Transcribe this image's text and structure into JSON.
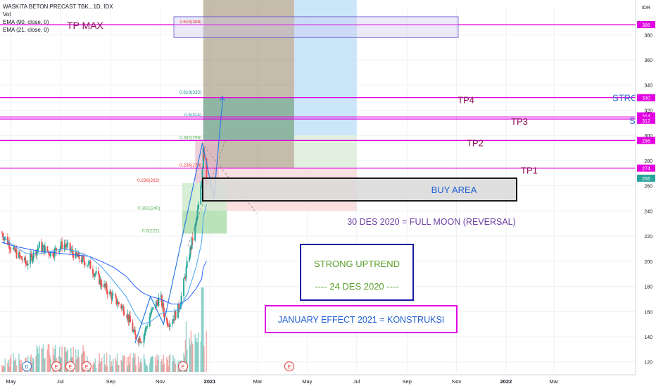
{
  "header": {
    "symbol_line": "WASKITA BETON PRECAST TBK., 1D, IDX",
    "indicators": [
      "Vol",
      "EMA (90, close, 0)",
      "EMA (21, close, 0)"
    ],
    "currency": "IDR"
  },
  "chart_data": {
    "type": "candlestick",
    "title": "",
    "x_tick_labels": [
      "May",
      "Jul",
      "Sep",
      "Nov",
      "2021",
      "Mar",
      "May",
      "Jul",
      "Sep",
      "Nov",
      "2022",
      "Mar"
    ],
    "y_tick_labels": [
      120,
      140,
      160,
      180,
      200,
      220,
      240,
      260,
      280,
      300,
      320,
      340,
      360,
      380
    ],
    "ylim": [
      112,
      402
    ],
    "price_series": {
      "name": "",
      "dates": [
        "2020-04-20",
        "2020-05-05",
        "2020-05-20",
        "2020-06-05",
        "2020-06-20",
        "2020-07-05",
        "2020-07-20",
        "2020-08-05",
        "2020-08-20",
        "2020-09-05",
        "2020-09-20",
        "2020-10-01",
        "2020-10-10",
        "2020-10-20",
        "2020-11-01",
        "2020-11-08",
        "2020-11-15",
        "2020-11-25",
        "2020-12-05",
        "2020-12-15",
        "2020-12-22",
        "2020-12-24",
        "2020-12-28"
      ],
      "close": [
        222,
        208,
        198,
        212,
        206,
        214,
        204,
        198,
        183,
        170,
        160,
        140,
        138,
        158,
        172,
        152,
        152,
        165,
        200,
        230,
        262,
        292,
        262
      ]
    },
    "ema_90": {
      "values": [
        215,
        212,
        210,
        208,
        207,
        206,
        205,
        204,
        200,
        195,
        188,
        180,
        175,
        172,
        170,
        168,
        166,
        166,
        170,
        178,
        186,
        195,
        200
      ]
    },
    "ema_21": {
      "values": [
        220,
        212,
        206,
        206,
        208,
        210,
        208,
        204,
        196,
        184,
        172,
        158,
        150,
        152,
        158,
        160,
        160,
        162,
        175,
        195,
        215,
        235,
        245
      ]
    },
    "volume_note": "daily volume bars",
    "horizontal_levels": [
      {
        "label": "TP MAX",
        "price": 388,
        "color": "#e200e2"
      },
      {
        "label": "TP4",
        "price": 330,
        "color": "#e200e2"
      },
      {
        "label": "TP3",
        "price": 313,
        "color": "#e200e2"
      },
      {
        "label": "TP2",
        "price": 296,
        "color": "#e200e2"
      },
      {
        "label": "TP1",
        "price": 274,
        "color": "#e200e2"
      }
    ],
    "price_badges": [
      "388",
      "330",
      "314",
      "312",
      "296",
      "274",
      "266"
    ],
    "fib_labels": [
      {
        "text": "2.618(388)",
        "price": 388
      },
      {
        "text": "0.618(332)",
        "price": 332
      },
      {
        "text": "0.5(314)",
        "price": 314
      },
      {
        "text": "0.382(296)",
        "price": 296
      },
      {
        "text": "0.236(274)",
        "price": 274
      },
      {
        "text": "0.236(262)",
        "price": 262
      },
      {
        "text": "0.382(240)",
        "price": 240
      },
      {
        "text": "0.5(222)",
        "price": 222
      }
    ],
    "annotations": {
      "buy_area": "BUY AREA",
      "full_moon": "30 DES 2020 = FULL MOON (REVERSAL)",
      "uptrend_title": "STRONG UPTREND",
      "uptrend_date": "---- 24 DES 2020 ----",
      "january_effect": "JANUARY EFFECT 2021 = KONSTRUKSI",
      "right_edge_1": "STRO",
      "right_edge_2": "ST"
    },
    "event_markers": [
      "D",
      "E",
      "E",
      "E",
      "E",
      "E"
    ],
    "buy_area_range": [
      248,
      266
    ],
    "grid": true,
    "legend_position": "top-left"
  },
  "colors": {
    "level": "#e200e2",
    "up": "#26a69a",
    "down": "#ef5350",
    "ema_slow": "#2962ff",
    "ema_fast": "#42a5f5",
    "fib_text_green": "#4caf50",
    "fib_text_red": "#e53935",
    "buy_area_fill": "#d9d9d9",
    "annotation_blue": "#1e5fd4",
    "annotation_green": "#5aa02c",
    "annotation_purple": "#6b3fa0",
    "tp_text": "#8a0b57"
  }
}
